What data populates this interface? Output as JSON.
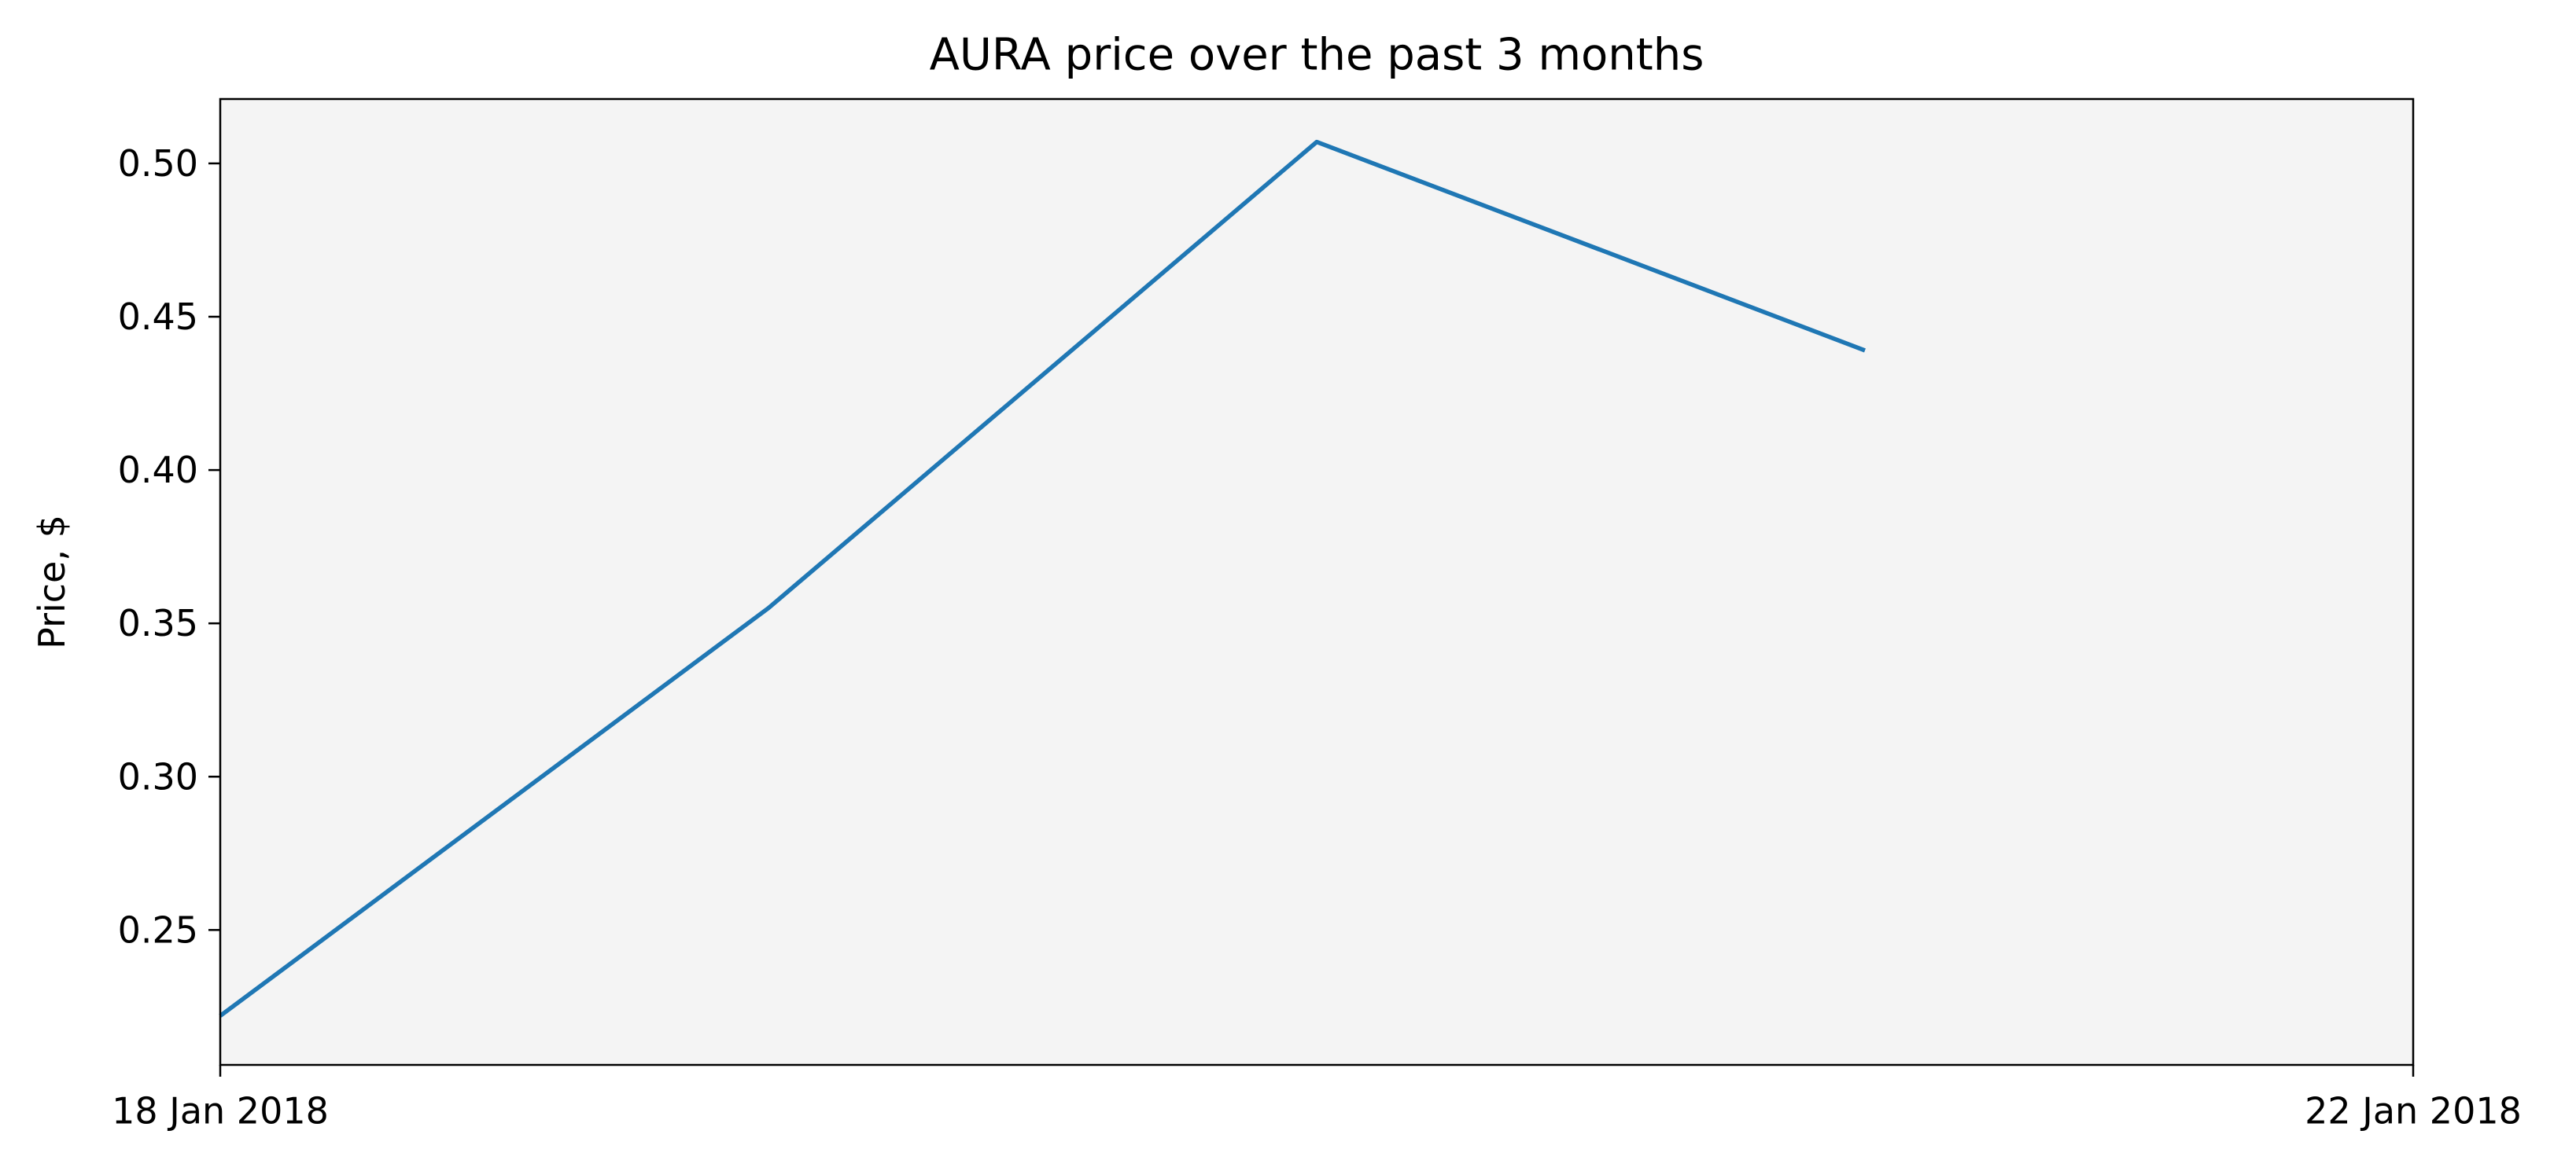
{
  "chart_data": {
    "type": "line",
    "title": "AURA price over the past 3 months",
    "xlabel": "",
    "ylabel": "Price, $",
    "x": [
      "2018-01-18",
      "2018-01-19",
      "2018-01-20",
      "2018-01-21"
    ],
    "series": [
      {
        "values": [
          0.222,
          0.355,
          0.507,
          0.439
        ],
        "color": "#1f77b4"
      }
    ],
    "x_ticks": [
      "18 Jan 2018",
      "22 Jan 2018"
    ],
    "y_ticks": [
      "0.25",
      "0.30",
      "0.35",
      "0.40",
      "0.45",
      "0.50"
    ],
    "ylim": [
      0.206,
      0.521
    ],
    "grid": false,
    "background_color": "#f4f4f4"
  }
}
